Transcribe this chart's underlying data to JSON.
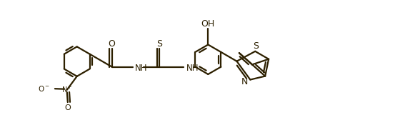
{
  "line_color": "#2d2000",
  "bg_color": "#ffffff",
  "line_width": 1.6,
  "figsize": [
    5.53,
    1.96
  ],
  "dpi": 100,
  "xlim": [
    0,
    11.0
  ],
  "ylim": [
    0,
    3.92
  ]
}
